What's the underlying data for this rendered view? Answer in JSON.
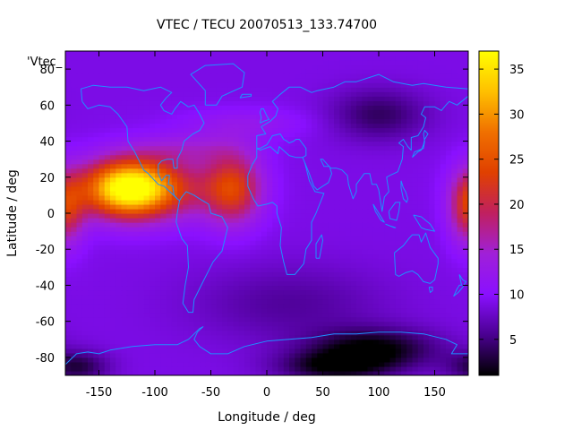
{
  "chart_data": {
    "type": "heatmap",
    "title": "VTEC / TECU 20070513_133.74700",
    "xlabel": "Longitude / deg",
    "ylabel": "Latitude / deg",
    "key_label": "'Vtec_",
    "xlim": [
      -180,
      180
    ],
    "ylim": [
      -90,
      90
    ],
    "x_ticks": [
      -150,
      -100,
      -50,
      0,
      50,
      100,
      150
    ],
    "y_ticks": [
      -80,
      -60,
      -40,
      -20,
      0,
      20,
      40,
      60,
      80
    ],
    "colorbar": {
      "min": 1,
      "max": 37,
      "ticks": [
        5,
        10,
        15,
        20,
        25,
        30,
        35
      ]
    },
    "palette": [
      "#000000",
      "#4a0090",
      "#8a10ff",
      "#a020d8",
      "#c02060",
      "#e04000",
      "#f07000",
      "#ffc000",
      "#ffff00"
    ],
    "coast_color": "#1e90ff",
    "features": {
      "background_vtec": 9,
      "peaks": [
        {
          "region": "eastern Pacific / Central America",
          "lon": -125,
          "lat": 14,
          "vtec": 34
        },
        {
          "region": "tropical Atlantic",
          "lon": -30,
          "lat": 14,
          "vtec": 22
        },
        {
          "region": "western Pacific (dateline)",
          "lon": 180,
          "lat": 3,
          "vtec": 21
        }
      ],
      "minima": [
        {
          "region": "Antarctic coast south of Indian Ocean",
          "lon": 95,
          "lat": -75,
          "vtec": 1
        },
        {
          "region": "Siberia / Central Asia",
          "lon": 100,
          "lat": 55,
          "vtec": 4
        },
        {
          "region": "South Pacific near Antarctica",
          "lon": -170,
          "lat": -85,
          "vtec": 3
        }
      ]
    }
  }
}
